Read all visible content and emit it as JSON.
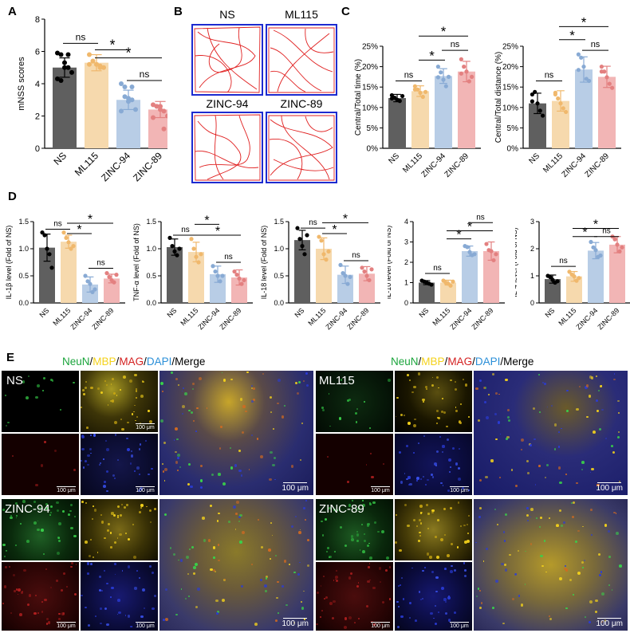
{
  "panel_letters": [
    "A",
    "B",
    "C",
    "D",
    "E"
  ],
  "colors": {
    "NS": "#5f5f5f",
    "ML115": "#f6d9ad",
    "ZINC-94": "#b8cde6",
    "ZINC-89": "#f2b5b5",
    "NS_point": "#000000",
    "ML115_point": "#f0b86c",
    "ZINC-94_point": "#88aad4",
    "ZINC-89_point": "#e38080",
    "maze_border": "#1d2bd0",
    "maze_trace": "#e02020",
    "merge_bg": "#1a1c5a"
  },
  "chart_data": [
    {
      "id": "A",
      "type": "bar",
      "categories": [
        "NS",
        "ML115",
        "ZINC-94",
        "ZINC-89"
      ],
      "values": [
        5.0,
        5.3,
        3.0,
        2.4
      ],
      "errors": [
        0.6,
        0.5,
        0.6,
        0.5
      ],
      "points": [
        [
          5.9,
          5.8,
          5.3,
          5.0,
          4.7,
          4.3,
          4.2,
          5.0,
          5.8
        ],
        [
          5.8,
          5.4,
          5.2,
          5.1,
          5.0,
          5.2,
          5.4,
          5.2,
          5.0
        ],
        [
          4.0,
          3.8,
          3.1,
          3.0,
          2.4,
          2.3,
          3.2,
          2.9,
          3.8
        ],
        [
          2.7,
          2.6,
          2.6,
          2.3,
          2.0,
          1.9,
          2.6,
          2.4,
          1.2
        ]
      ],
      "ylabel": "mNSS scores",
      "ylim": [
        0,
        8
      ],
      "yticks": [
        "0",
        "2",
        "4",
        "6",
        "8"
      ],
      "sig": [
        {
          "from": 0,
          "to": 1,
          "level": 6.5,
          "label": "ns"
        },
        {
          "from": 1,
          "to": 2,
          "level": 6.1,
          "label": "*"
        },
        {
          "from": 1,
          "to": 3,
          "level": 5.6,
          "label": "*"
        },
        {
          "from": 2,
          "to": 3,
          "level": 4.2,
          "label": "ns"
        }
      ]
    },
    {
      "id": "C1",
      "type": "bar",
      "categories": [
        "NS",
        "ML115",
        "ZINC-94",
        "ZINC-89"
      ],
      "values": [
        12.3,
        14.0,
        17.7,
        18.8
      ],
      "errors": [
        0.9,
        1.3,
        1.8,
        2.5
      ],
      "points": [
        [
          13.0,
          12.4,
          11.9,
          11.6,
          12.8,
          12.2
        ],
        [
          15.2,
          14.4,
          13.6,
          12.6,
          13.8,
          14.4
        ],
        [
          20.0,
          18.6,
          16.8,
          15.2,
          17.5,
          17.4
        ],
        [
          21.8,
          20.0,
          18.8,
          16.4,
          17.5,
          18.3
        ]
      ],
      "ylabel": "Central/Total time (%)",
      "ylim": [
        0,
        25
      ],
      "yticks": [
        "0%",
        "5%",
        "10%",
        "15%",
        "20%",
        "25%"
      ],
      "sig": [
        {
          "from": 0,
          "to": 1,
          "level": 16.5,
          "label": "ns"
        },
        {
          "from": 1,
          "to": 2,
          "level": 21.6,
          "label": "*"
        },
        {
          "from": 2,
          "to": 3,
          "level": 24.0,
          "label": "ns"
        },
        {
          "from": 1,
          "to": 3,
          "level": 27.5,
          "label": "*"
        }
      ]
    },
    {
      "id": "C2",
      "type": "bar",
      "categories": [
        "NS",
        "ML115",
        "ZINC-94",
        "ZINC-89"
      ],
      "values": [
        11.0,
        11.6,
        19.3,
        17.5
      ],
      "errors": [
        2.5,
        2.5,
        3.1,
        2.6
      ],
      "points": [
        [
          13.2,
          13.8,
          11.0,
          9.2,
          8.0,
          11.5
        ],
        [
          13.6,
          12.2,
          11.0,
          9.8,
          8.9,
          13.2
        ],
        [
          23.0,
          22.2,
          20.0,
          17.0,
          16.5,
          19.2
        ],
        [
          20.0,
          18.8,
          17.4,
          15.8,
          14.8,
          18.8
        ]
      ],
      "ylabel": "Central/Total distance (%)",
      "ylim": [
        0,
        25
      ],
      "yticks": [
        "0%",
        "5%",
        "10%",
        "15%",
        "20%",
        "25%"
      ],
      "sig": [
        {
          "from": 0,
          "to": 1,
          "level": 16.5,
          "label": "ns"
        },
        {
          "from": 1,
          "to": 2,
          "level": 26.6,
          "label": "*"
        },
        {
          "from": 2,
          "to": 3,
          "level": 24.0,
          "label": "ns"
        },
        {
          "from": 1,
          "to": 3,
          "level": 29.8,
          "label": "*"
        }
      ]
    },
    {
      "id": "D1",
      "type": "bar",
      "categories": [
        "NS",
        "ML115",
        "ZINC-94",
        "ZINC-89"
      ],
      "values": [
        1.02,
        1.13,
        0.34,
        0.45
      ],
      "errors": [
        0.25,
        0.12,
        0.14,
        0.08
      ],
      "points": [
        [
          1.3,
          1.25,
          1.0,
          0.9,
          0.65
        ],
        [
          1.3,
          1.2,
          1.12,
          1.0,
          1.05
        ],
        [
          0.5,
          0.4,
          0.35,
          0.2,
          0.25
        ],
        [
          0.55,
          0.48,
          0.42,
          0.38,
          0.52
        ]
      ],
      "ylabel": "IL-1β level  (Fold of NS)",
      "ylim": [
        0,
        1.5
      ],
      "yticks": [
        "0.0",
        "0.5",
        "1.0",
        "1.5"
      ],
      "sig": [
        {
          "from": 0,
          "to": 1,
          "level": 1.36,
          "label": "ns"
        },
        {
          "from": 1,
          "to": 2,
          "level": 1.28,
          "label": "*"
        },
        {
          "from": 1,
          "to": 3,
          "level": 1.47,
          "label": "*"
        },
        {
          "from": 2,
          "to": 3,
          "level": 0.64,
          "label": "ns"
        }
      ]
    },
    {
      "id": "D2",
      "type": "bar",
      "categories": [
        "NS",
        "ML115",
        "ZINC-94",
        "ZINC-89"
      ],
      "values": [
        1.03,
        0.94,
        0.53,
        0.47
      ],
      "errors": [
        0.15,
        0.18,
        0.15,
        0.14
      ],
      "points": [
        [
          1.2,
          1.05,
          0.95,
          0.88,
          1.0
        ],
        [
          1.18,
          1.0,
          0.85,
          0.75,
          0.9
        ],
        [
          0.68,
          0.58,
          0.5,
          0.4,
          0.5
        ],
        [
          0.58,
          0.52,
          0.45,
          0.35,
          0.42
        ]
      ],
      "ylabel": "TNF-α level  (Fold of NS)",
      "ylim": [
        0,
        1.5
      ],
      "yticks": [
        "0.0",
        "0.5",
        "1.0",
        "1.5"
      ],
      "sig": [
        {
          "from": 0,
          "to": 1,
          "level": 1.25,
          "label": "ns"
        },
        {
          "from": 1,
          "to": 2,
          "level": 1.45,
          "label": "*"
        },
        {
          "from": 1,
          "to": 3,
          "level": 1.25,
          "label": "*"
        },
        {
          "from": 2,
          "to": 3,
          "level": 0.75,
          "label": "ns"
        }
      ]
    },
    {
      "id": "D3",
      "type": "bar",
      "categories": [
        "NS",
        "ML115",
        "ZINC-94",
        "ZINC-89"
      ],
      "values": [
        1.16,
        1.0,
        0.52,
        0.54
      ],
      "errors": [
        0.18,
        0.2,
        0.16,
        0.13
      ],
      "points": [
        [
          1.38,
          1.18,
          1.05,
          0.9,
          1.25
        ],
        [
          1.22,
          1.15,
          0.9,
          0.8,
          0.95
        ],
        [
          0.7,
          0.55,
          0.5,
          0.35,
          0.48
        ],
        [
          0.65,
          0.58,
          0.5,
          0.42,
          0.62
        ]
      ],
      "ylabel": "IL-18 level  (Fold of NS)",
      "ylim": [
        0,
        1.5
      ],
      "yticks": [
        "0.0",
        "0.5",
        "1.0",
        "1.5"
      ],
      "sig": [
        {
          "from": 0,
          "to": 1,
          "level": 1.38,
          "label": "ns"
        },
        {
          "from": 1,
          "to": 2,
          "level": 1.28,
          "label": "*"
        },
        {
          "from": 1,
          "to": 3,
          "level": 1.48,
          "label": "*"
        },
        {
          "from": 2,
          "to": 3,
          "level": 0.78,
          "label": "ns"
        }
      ]
    },
    {
      "id": "D4",
      "type": "bar",
      "categories": [
        "NS",
        "ML115",
        "ZINC-94",
        "ZINC-89"
      ],
      "values": [
        1.0,
        1.0,
        2.55,
        2.55
      ],
      "errors": [
        0.1,
        0.12,
        0.25,
        0.45
      ],
      "points": [
        [
          1.1,
          1.05,
          1.0,
          0.95,
          0.9
        ],
        [
          1.1,
          1.0,
          0.95,
          0.85,
          1.05
        ],
        [
          2.8,
          2.75,
          2.5,
          2.35,
          2.4
        ],
        [
          2.9,
          2.6,
          2.55,
          2.1,
          2.4
        ]
      ],
      "ylabel": "IL-10 level  (Fold of NS)",
      "ylim": [
        0,
        4
      ],
      "yticks": [
        "0",
        "1",
        "2",
        "3",
        "4"
      ],
      "sig": [
        {
          "from": 0,
          "to": 1,
          "level": 1.45,
          "label": "ns"
        },
        {
          "from": 1,
          "to": 2,
          "level": 3.15,
          "label": "*"
        },
        {
          "from": 1,
          "to": 3,
          "level": 3.55,
          "label": "*"
        },
        {
          "from": 2,
          "to": 3,
          "level": 3.95,
          "label": "ns"
        }
      ]
    },
    {
      "id": "D5",
      "type": "bar",
      "categories": [
        "NS",
        "ML115",
        "ZINC-94",
        "ZINC-89"
      ],
      "values": [
        0.88,
        0.98,
        1.93,
        2.15
      ],
      "errors": [
        0.15,
        0.18,
        0.3,
        0.3
      ],
      "points": [
        [
          1.0,
          0.95,
          0.85,
          0.75,
          0.8
        ],
        [
          1.15,
          1.05,
          0.98,
          0.82,
          0.92
        ],
        [
          2.25,
          2.05,
          1.95,
          1.7,
          1.75
        ],
        [
          2.45,
          2.35,
          2.15,
          1.9,
          2.05
        ]
      ],
      "ylabel": "IL-4 level  (Fold of NS)",
      "ylim": [
        0,
        3
      ],
      "yticks": [
        "0",
        "1",
        "2",
        "3"
      ],
      "sig": [
        {
          "from": 0,
          "to": 1,
          "level": 1.35,
          "label": "ns"
        },
        {
          "from": 1,
          "to": 2,
          "level": 2.45,
          "label": "*"
        },
        {
          "from": 1,
          "to": 3,
          "level": 2.75,
          "label": "*"
        },
        {
          "from": 2,
          "to": 3,
          "level": 2.45,
          "label": "ns"
        }
      ]
    }
  ],
  "panel_b": {
    "labels": [
      "NS",
      "ML115",
      "ZINC-94",
      "ZINC-89"
    ]
  },
  "panel_e": {
    "legend_parts": [
      {
        "text": "NeuN",
        "color": "#1aa43b"
      },
      {
        "text": "/",
        "color": "#000000"
      },
      {
        "text": "MBP",
        "color": "#f4d21b"
      },
      {
        "text": "/",
        "color": "#000000"
      },
      {
        "text": "MAG",
        "color": "#d42020"
      },
      {
        "text": "/",
        "color": "#000000"
      },
      {
        "text": "DAPI",
        "color": "#2a8fd8"
      },
      {
        "text": "/Merge",
        "color": "#000000"
      }
    ],
    "groups": [
      "NS",
      "ML115",
      "ZINC-94",
      "ZINC-89"
    ],
    "scale_small": "100 μm",
    "scale_big": "100 μm"
  }
}
